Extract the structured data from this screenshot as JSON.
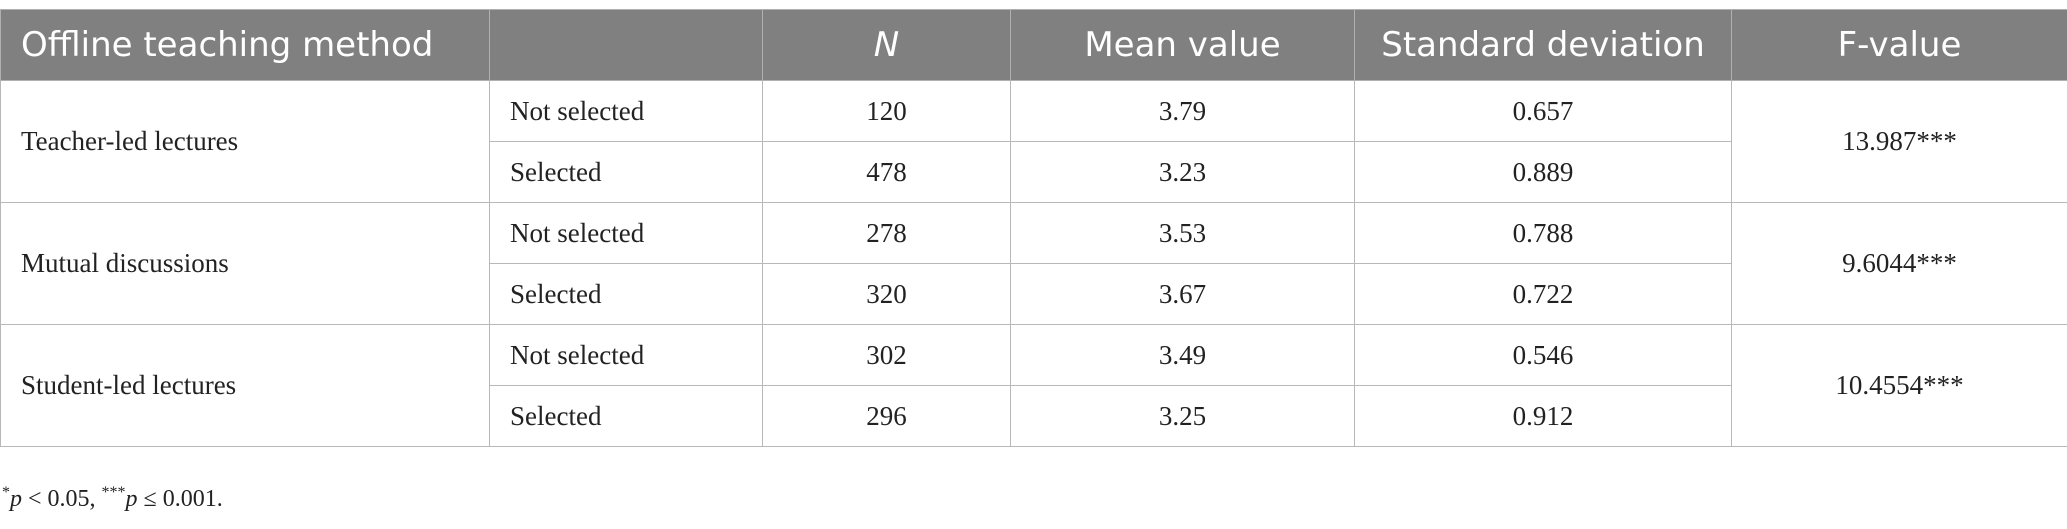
{
  "table": {
    "header": {
      "method": "Offline teaching method",
      "n": "N",
      "mean": "Mean value",
      "sd": "Standard deviation",
      "f": "F-value"
    },
    "groups": [
      {
        "method": "Teacher-led lectures",
        "f_value": "13.987***",
        "rows": [
          {
            "selection": "Not selected",
            "n": 120,
            "mean": 3.79,
            "sd": 0.657
          },
          {
            "selection": "Selected",
            "n": 478,
            "mean": 3.23,
            "sd": 0.889
          }
        ]
      },
      {
        "method": "Mutual discussions",
        "f_value": "9.6044***",
        "rows": [
          {
            "selection": "Not selected",
            "n": 278,
            "mean": 3.53,
            "sd": 0.788
          },
          {
            "selection": "Selected",
            "n": 320,
            "mean": 3.67,
            "sd": 0.722
          }
        ]
      },
      {
        "method": "Student-led lectures",
        "f_value": "10.4554***",
        "rows": [
          {
            "selection": "Not selected",
            "n": 302,
            "mean": 3.49,
            "sd": 0.546
          },
          {
            "selection": "Selected",
            "n": 296,
            "mean": 3.25,
            "sd": 0.912
          }
        ]
      }
    ]
  },
  "footnote": {
    "mark1": "*",
    "p1": "p",
    "text1": " < 0.05, ",
    "mark2": "***",
    "p2": "p",
    "text2": " ≤ 0.001."
  }
}
